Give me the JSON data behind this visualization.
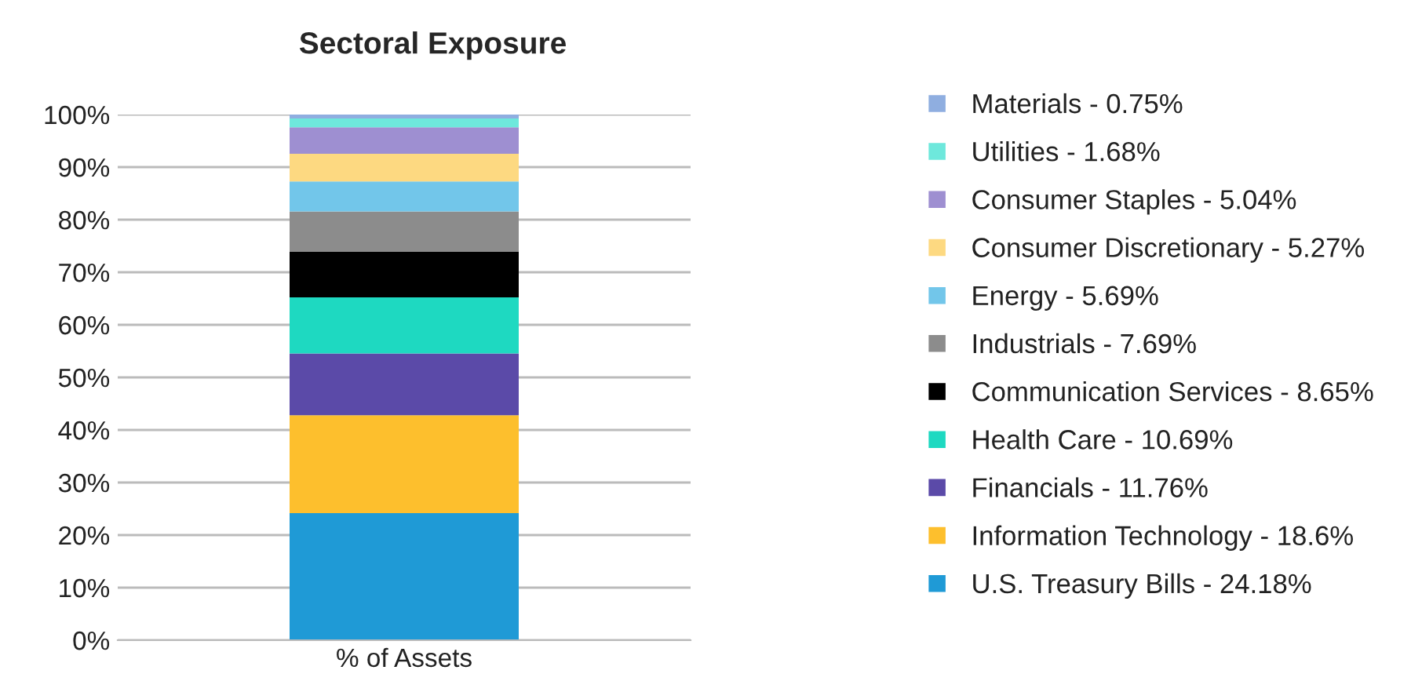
{
  "chart_data": {
    "type": "bar",
    "title": "Sectoral Exposure",
    "categories": [
      "% of Assets"
    ],
    "stacked": true,
    "series": [
      {
        "name": "U.S. Treasury Bills - 24.18%",
        "color": "#1f9ad6",
        "values": [
          24.18
        ]
      },
      {
        "name": "Information Technology - 18.6%",
        "color": "#fdbf2d",
        "values": [
          18.6
        ]
      },
      {
        "name": "Financials - 11.76%",
        "color": "#5b4aa8",
        "values": [
          11.76
        ]
      },
      {
        "name": "Health Care - 10.69%",
        "color": "#1ed9c1",
        "values": [
          10.69
        ]
      },
      {
        "name": "Communication Services - 8.65%",
        "color": "#000000",
        "values": [
          8.65
        ]
      },
      {
        "name": "Industrials - 7.69%",
        "color": "#8c8c8c",
        "values": [
          7.69
        ]
      },
      {
        "name": "Energy - 5.69%",
        "color": "#72c6ea",
        "values": [
          5.69
        ]
      },
      {
        "name": "Consumer Discretionary - 5.27%",
        "color": "#fdd981",
        "values": [
          5.27
        ]
      },
      {
        "name": "Consumer Staples - 5.04%",
        "color": "#9e8fd1",
        "values": [
          5.04
        ]
      },
      {
        "name": "Utilities - 1.68%",
        "color": "#6ee8dc",
        "values": [
          1.68
        ]
      },
      {
        "name": "Materials - 0.75%",
        "color": "#8faee0",
        "values": [
          0.75
        ]
      }
    ],
    "ylim": [
      0,
      100
    ],
    "yticks": [
      {
        "value": 0,
        "label": "0%"
      },
      {
        "value": 10,
        "label": "10%"
      },
      {
        "value": 20,
        "label": "20%"
      },
      {
        "value": 30,
        "label": "30%"
      },
      {
        "value": 40,
        "label": "40%"
      },
      {
        "value": 50,
        "label": "50%"
      },
      {
        "value": 60,
        "label": "60%"
      },
      {
        "value": 70,
        "label": "70%"
      },
      {
        "value": 80,
        "label": "80%"
      },
      {
        "value": 90,
        "label": "90%"
      },
      {
        "value": 100,
        "label": "100%"
      }
    ],
    "grid": "y",
    "legend": "right"
  }
}
